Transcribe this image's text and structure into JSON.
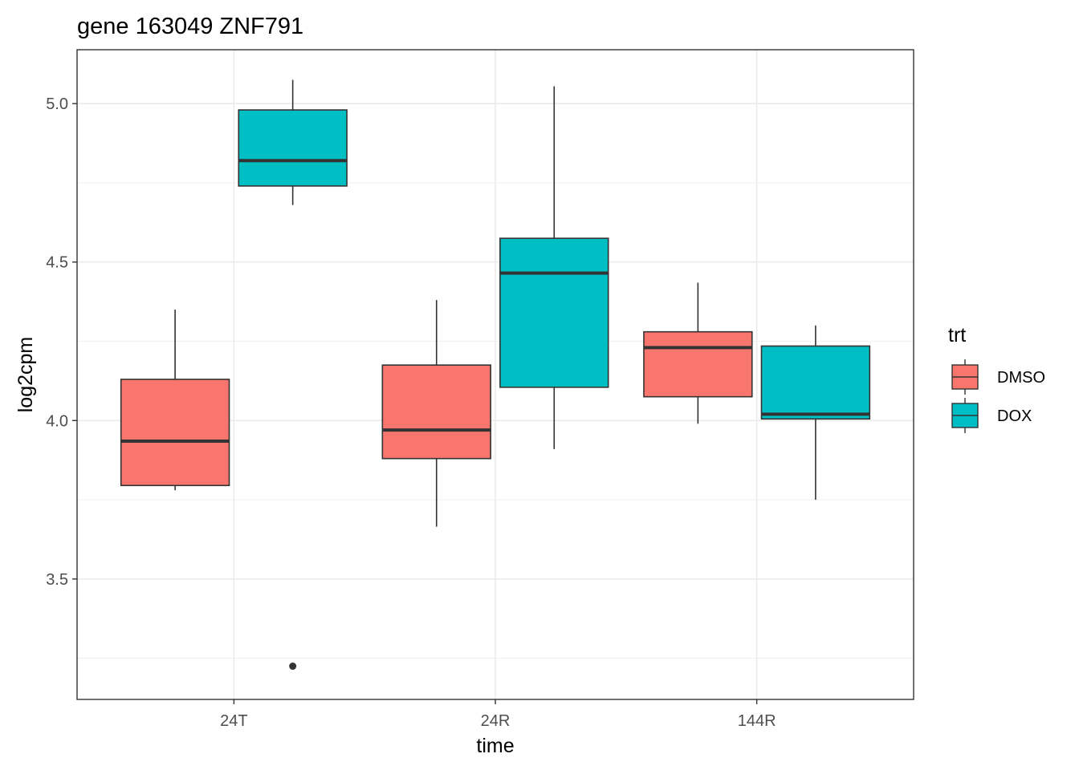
{
  "chart_data": {
    "type": "boxplot",
    "title": "gene 163049 ZNF791",
    "xlabel": "time",
    "ylabel": "log2cpm",
    "categories": [
      "24T",
      "24R",
      "144R"
    ],
    "ylim": [
      3.12,
      5.17
    ],
    "yticks": [
      3.5,
      4.0,
      4.5,
      5.0
    ],
    "yticklabels": [
      "3.5",
      "4.0",
      "4.5",
      "5.0"
    ],
    "grid": true,
    "legend": {
      "title": "trt",
      "position": "right"
    },
    "series": [
      {
        "name": "DMSO",
        "color": "#F8766D",
        "boxes": [
          {
            "category": "24T",
            "whisker_low": 3.78,
            "q1": 3.795,
            "median": 3.935,
            "q3": 4.13,
            "whisker_high": 4.35,
            "outliers": []
          },
          {
            "category": "24R",
            "whisker_low": 3.665,
            "q1": 3.88,
            "median": 3.97,
            "q3": 4.175,
            "whisker_high": 4.38,
            "outliers": []
          },
          {
            "category": "144R",
            "whisker_low": 3.99,
            "q1": 4.075,
            "median": 4.23,
            "q3": 4.28,
            "whisker_high": 4.435,
            "outliers": []
          }
        ]
      },
      {
        "name": "DOX",
        "color": "#00BFC4",
        "boxes": [
          {
            "category": "24T",
            "whisker_low": 4.68,
            "q1": 4.74,
            "median": 4.82,
            "q3": 4.98,
            "whisker_high": 5.075,
            "outliers": [
              3.225
            ]
          },
          {
            "category": "24R",
            "whisker_low": 3.91,
            "q1": 4.105,
            "median": 4.465,
            "q3": 4.575,
            "whisker_high": 5.055,
            "outliers": []
          },
          {
            "category": "144R",
            "whisker_low": 3.75,
            "q1": 4.005,
            "median": 4.02,
            "q3": 4.235,
            "whisker_high": 4.3,
            "outliers": []
          }
        ]
      }
    ]
  }
}
